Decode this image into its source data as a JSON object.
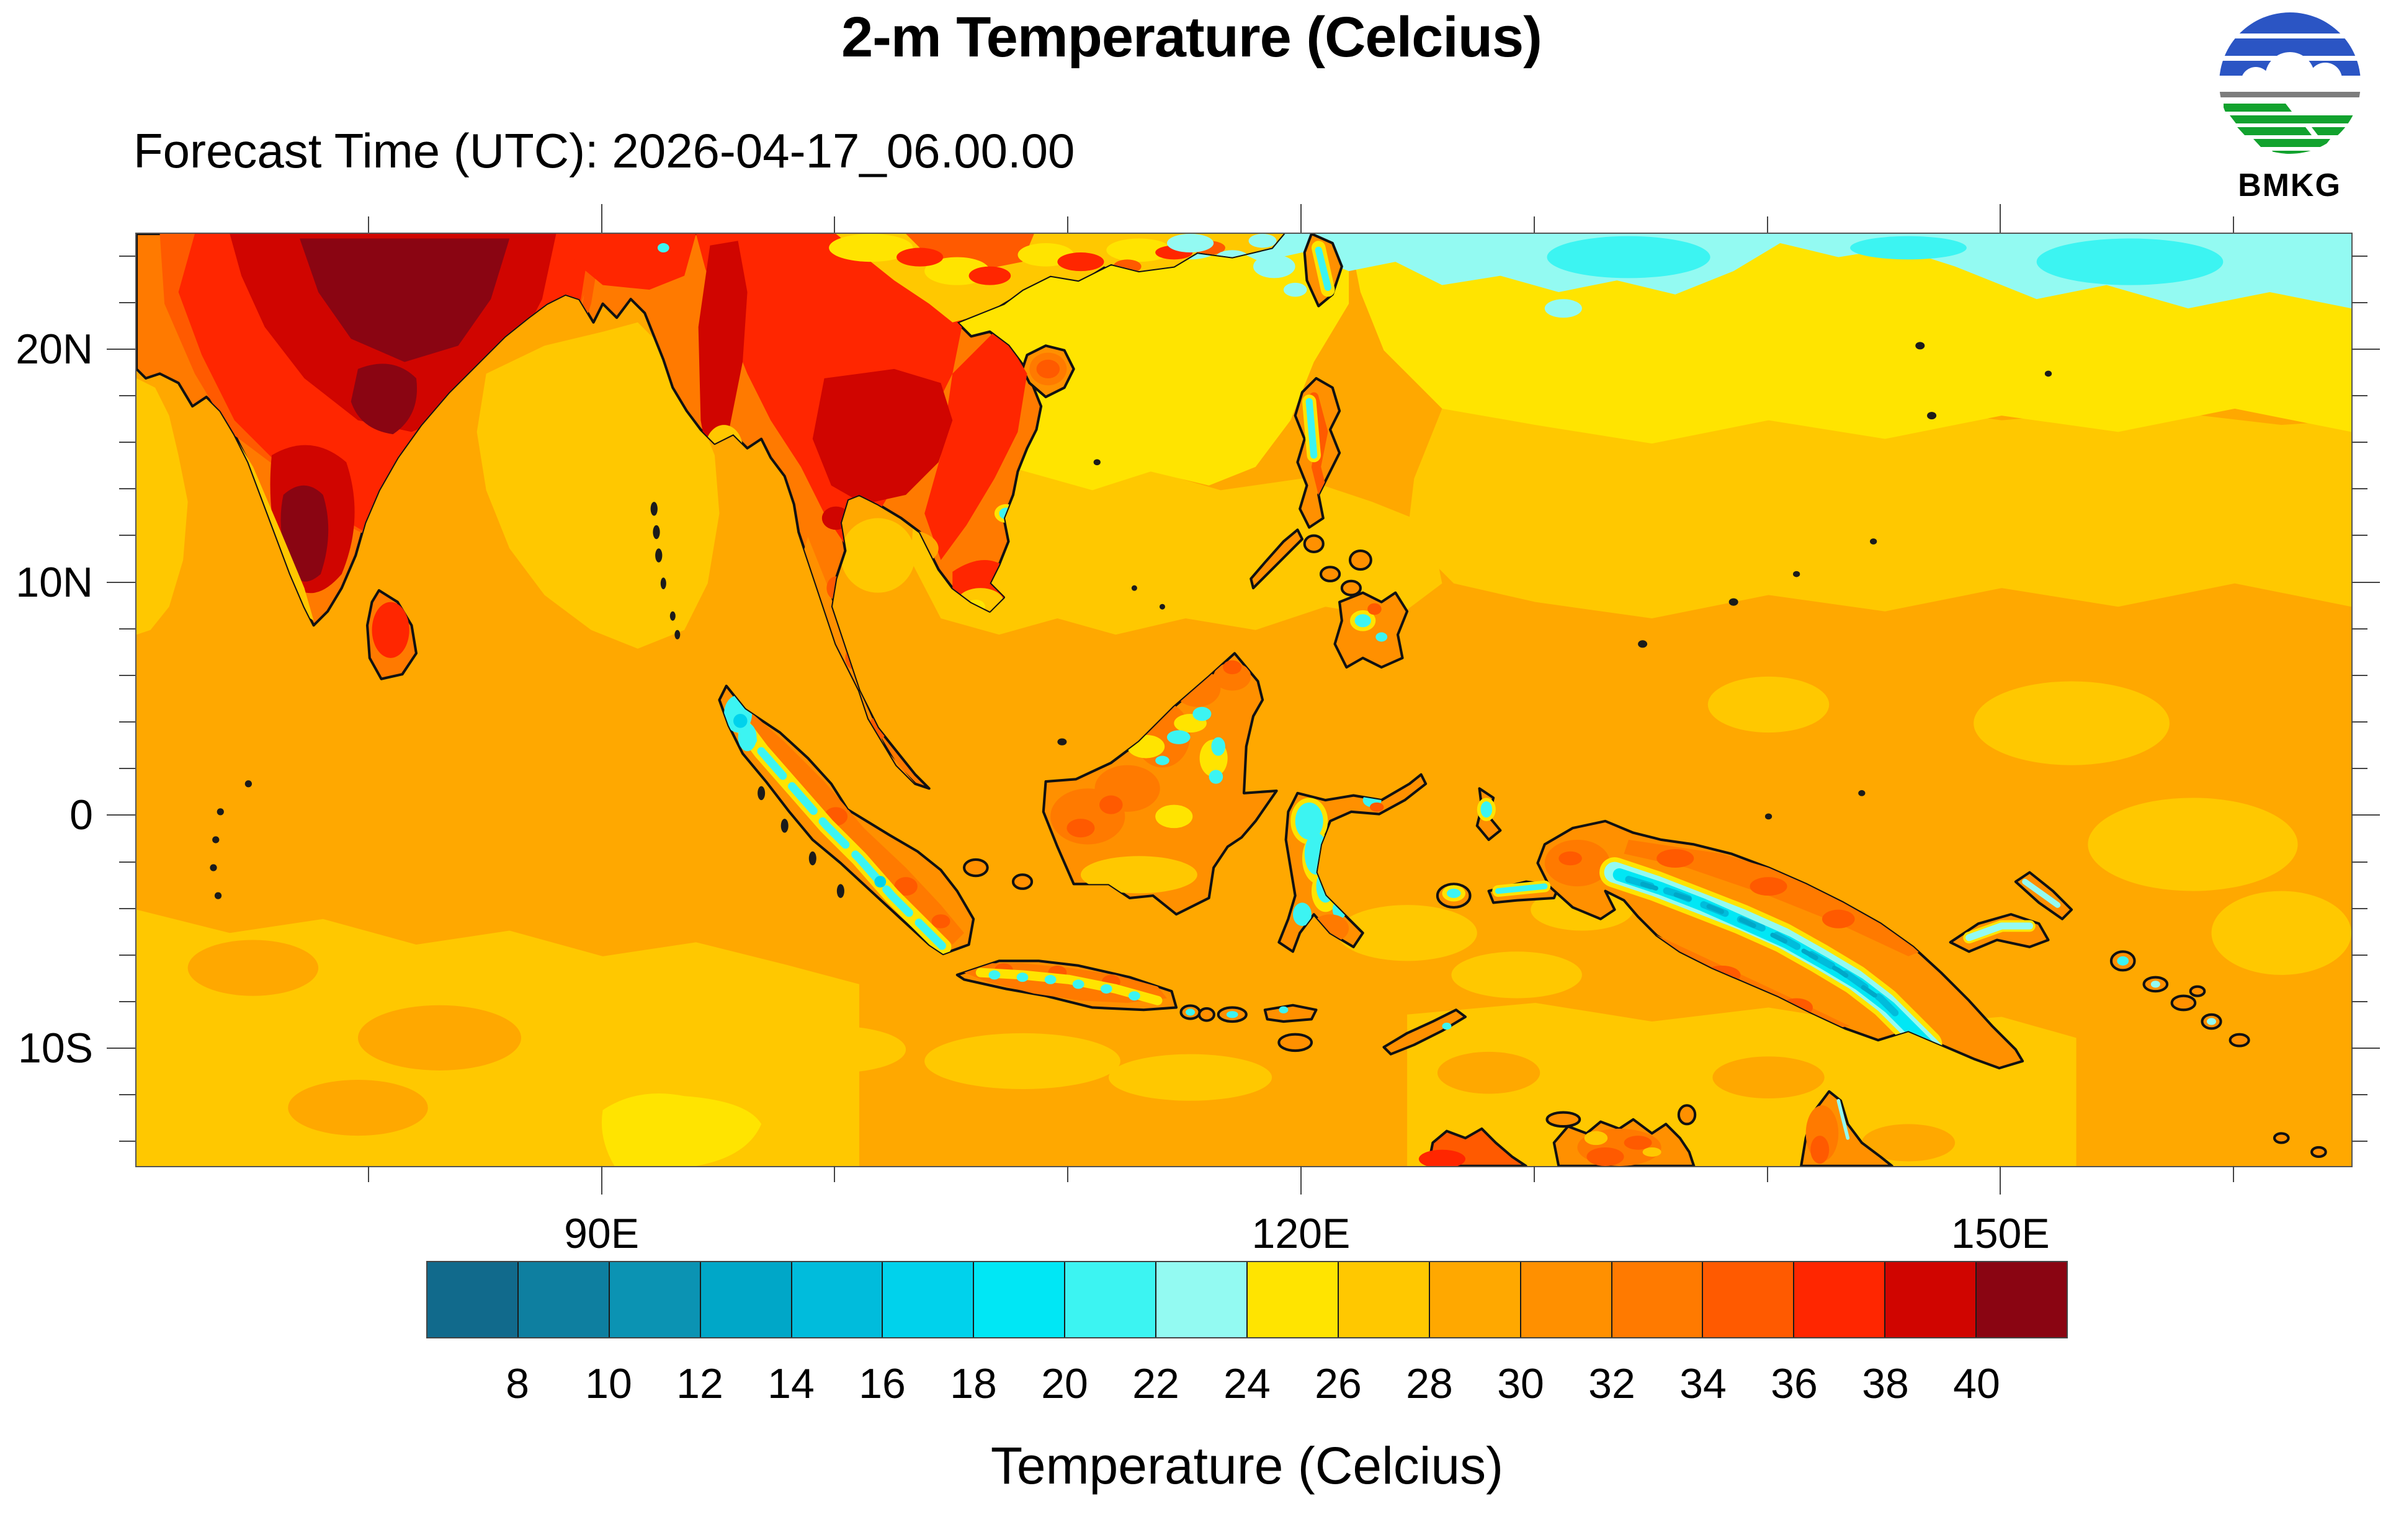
{
  "header": {
    "title": "2-m Temperature (Celcius)",
    "forecast_time": "Forecast Time (UTC): 2026-04-17_06.00.00",
    "logo_text": "BMKG"
  },
  "logo_colors": {
    "blue": "#2B55C4",
    "green": "#12A22E",
    "gray": "#7D7D7D"
  },
  "axes": {
    "extent": {
      "lon_min": 70,
      "lon_max": 165,
      "lat_min": -15,
      "lat_max": 25
    },
    "lat": {
      "minor_from": -14,
      "minor_to": 24,
      "minor_step": 2,
      "major": [
        {
          "value": 20,
          "label": "20N"
        },
        {
          "value": 10,
          "label": "10N"
        },
        {
          "value": 0,
          "label": "0"
        },
        {
          "value": -10,
          "label": "10S"
        }
      ]
    },
    "lon": {
      "minor_from": 80,
      "minor_to": 160,
      "minor_step": 10,
      "major": [
        {
          "value": 90,
          "label": "90E"
        },
        {
          "value": 120,
          "label": "120E"
        },
        {
          "value": 150,
          "label": "150E"
        }
      ]
    }
  },
  "colorbar": {
    "caption": "Temperature (Celcius)",
    "tick_labels": [
      "8",
      "10",
      "12",
      "14",
      "16",
      "18",
      "20",
      "22",
      "24",
      "26",
      "28",
      "30",
      "32",
      "34",
      "36",
      "38",
      "40"
    ],
    "cell_colors": [
      "#116A8C",
      "#0E7FA0",
      "#0B93B3",
      "#00A7C8",
      "#00BCDC",
      "#00D2EC",
      "#00E7F5",
      "#3CF4F2",
      "#93FAF2",
      "#FFE400",
      "#FFC800",
      "#FFA800",
      "#FF9000",
      "#FF7A00",
      "#FF5A00",
      "#FF2600",
      "#D00500",
      "#8A0512"
    ],
    "level_values": [
      8,
      10,
      12,
      14,
      16,
      18,
      20,
      22,
      24,
      26,
      28,
      30,
      32,
      34,
      36,
      38,
      40
    ]
  }
}
